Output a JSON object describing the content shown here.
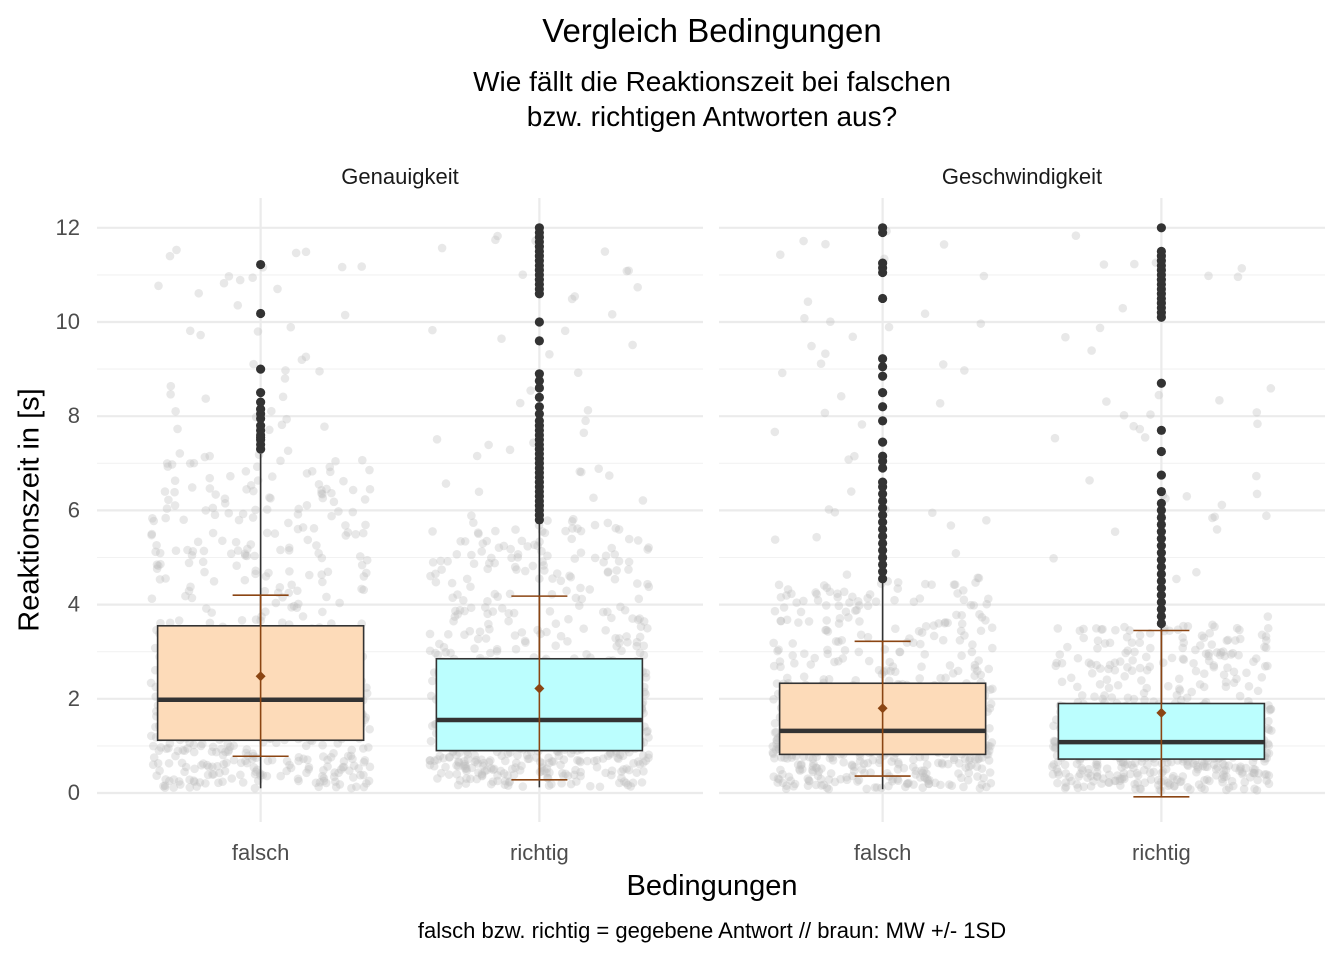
{
  "chart_data": {
    "type": "box",
    "title": "Vergleich Bedingungen",
    "subtitle": [
      "Wie fällt die Reaktionszeit bei falschen",
      "bzw. richtigen Antworten aus?"
    ],
    "xlabel": "Bedingungen",
    "ylabel": "Reaktionszeit in [s]",
    "caption": "falsch bzw. richtig = gegebene Antwort // braun: MW +/- 1SD",
    "ylim": [
      -0.6,
      12.7
    ],
    "yticks": [
      0,
      2,
      4,
      6,
      8,
      10,
      12
    ],
    "grid": true,
    "categories": [
      "falsch",
      "richtig"
    ],
    "colors": {
      "falsch": "#FDDBB9",
      "richtig": "#BBFEFE",
      "mean_sd": "#8B4513",
      "jitter": "#BDBDBD",
      "box_line": "#333333"
    },
    "panels": [
      {
        "name": "Genauigkeit",
        "groups": [
          {
            "category": "falsch",
            "q1": 1.12,
            "median": 1.98,
            "q3": 3.55,
            "whisker_low": 0.1,
            "whisker_high": 7.2,
            "mean": 2.48,
            "sd_low": 0.78,
            "sd_high": 4.2,
            "outliers": [
              7.3,
              7.4,
              7.5,
              7.55,
              7.6,
              7.7,
              7.8,
              7.95,
              8.05,
              8.15,
              8.3,
              8.5,
              9.0,
              10.18,
              11.22
            ]
          },
          {
            "category": "richtig",
            "q1": 0.9,
            "median": 1.55,
            "q3": 2.85,
            "whisker_low": 0.12,
            "whisker_high": 5.75,
            "mean": 2.22,
            "sd_low": 0.28,
            "sd_high": 4.18,
            "outliers": [
              5.8,
              5.9,
              6.0,
              6.1,
              6.2,
              6.3,
              6.4,
              6.5,
              6.6,
              6.7,
              6.8,
              6.9,
              7.0,
              7.1,
              7.2,
              7.3,
              7.4,
              7.5,
              7.6,
              7.7,
              7.8,
              7.9,
              8.05,
              8.2,
              8.4,
              8.6,
              8.75,
              8.9,
              9.6,
              10.0,
              10.6,
              10.7,
              10.8,
              10.9,
              11.0,
              11.1,
              11.2,
              11.3,
              11.4,
              11.5,
              11.6,
              11.7,
              11.8,
              11.9,
              12.0
            ]
          }
        ]
      },
      {
        "name": "Geschwindigkeit",
        "groups": [
          {
            "category": "falsch",
            "q1": 0.82,
            "median": 1.32,
            "q3": 2.33,
            "whisker_low": 0.08,
            "whisker_high": 4.5,
            "mean": 1.8,
            "sd_low": 0.36,
            "sd_high": 3.22,
            "outliers": [
              4.55,
              4.7,
              4.85,
              5.0,
              5.15,
              5.3,
              5.45,
              5.6,
              5.75,
              5.9,
              6.05,
              6.2,
              6.35,
              6.5,
              6.6,
              6.9,
              7.05,
              7.15,
              7.45,
              7.9,
              8.2,
              8.5,
              8.85,
              9.05,
              9.22,
              10.5,
              11.05,
              11.15,
              11.25,
              11.9,
              12.0
            ]
          },
          {
            "category": "richtig",
            "q1": 0.72,
            "median": 1.08,
            "q3": 1.9,
            "whisker_low": 0.05,
            "whisker_high": 3.55,
            "mean": 1.7,
            "sd_low": -0.08,
            "sd_high": 3.45,
            "outliers": [
              3.6,
              3.75,
              3.9,
              4.05,
              4.2,
              4.35,
              4.5,
              4.65,
              4.8,
              4.95,
              5.1,
              5.25,
              5.4,
              5.55,
              5.7,
              5.85,
              6.0,
              6.15,
              6.4,
              6.75,
              7.25,
              7.7,
              8.7,
              10.1,
              10.2,
              10.3,
              10.4,
              10.5,
              10.6,
              10.7,
              10.8,
              10.9,
              11.0,
              11.1,
              11.2,
              11.3,
              11.4,
              11.5,
              12.0
            ]
          }
        ]
      }
    ]
  }
}
